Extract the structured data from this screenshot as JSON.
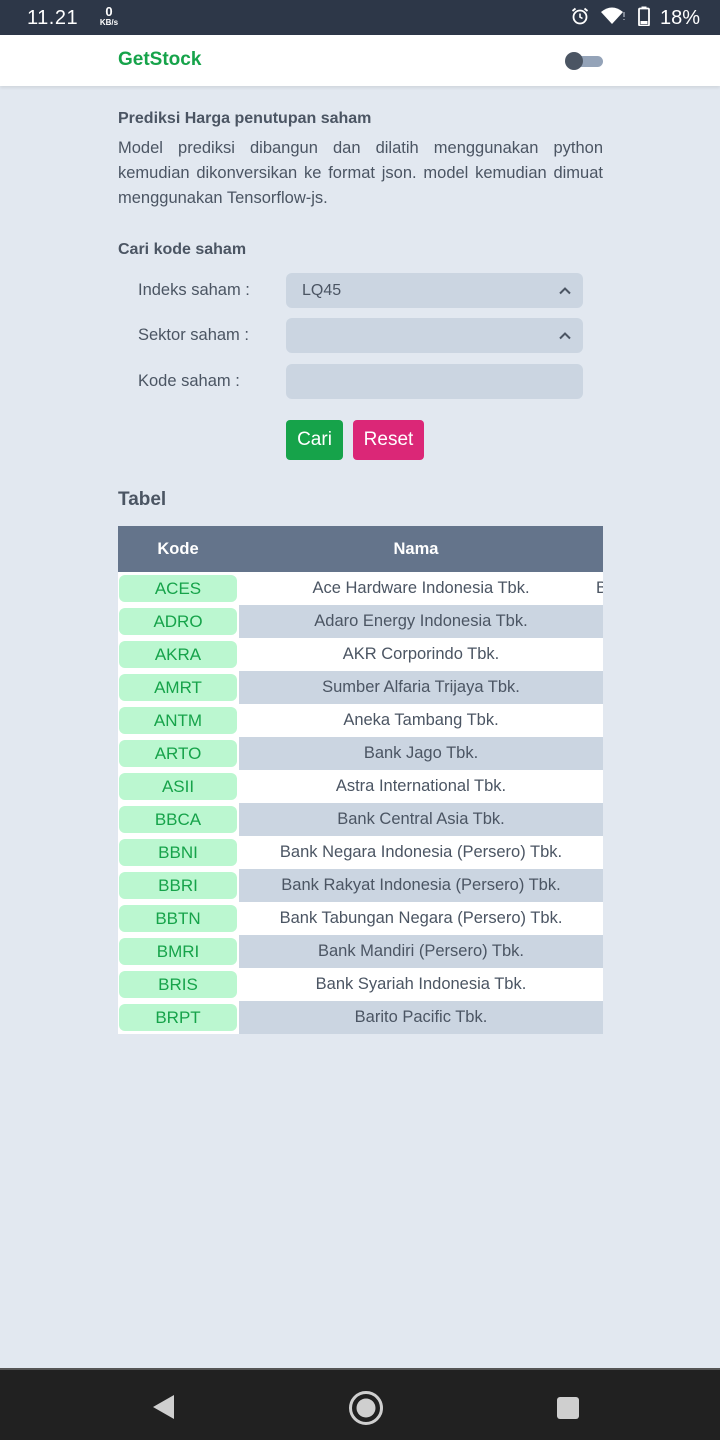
{
  "status_bar": {
    "time": "11.21",
    "net_speed_value": "0",
    "net_speed_unit": "KB/s",
    "battery": "18%",
    "icons": [
      "alarm-icon",
      "wifi-icon",
      "battery-icon"
    ]
  },
  "header": {
    "brand": "GetStock",
    "theme_toggle": "dark-mode-toggle"
  },
  "intro": {
    "title": "Prediksi Harga penutupan saham",
    "description": "Model prediksi dibangun dan dilatih menggunakan python kemudian dikonversikan ke format json. model kemudian dimuat menggunakan Tensorflow-js."
  },
  "search": {
    "title": "Cari kode saham",
    "index_label": "Indeks saham :",
    "index_value": "LQ45",
    "sector_label": "Sektor saham :",
    "sector_value": "",
    "code_label": "Kode saham :",
    "code_value": "",
    "search_button": "Cari",
    "reset_button": "Reset"
  },
  "table": {
    "title": "Tabel",
    "headers": {
      "kode": "Kode",
      "nama": "Nama"
    },
    "overflow_text": "B",
    "rows": [
      {
        "kode": "ACES",
        "nama": "Ace Hardware Indonesia Tbk."
      },
      {
        "kode": "ADRO",
        "nama": "Adaro Energy Indonesia Tbk."
      },
      {
        "kode": "AKRA",
        "nama": "AKR Corporindo Tbk."
      },
      {
        "kode": "AMRT",
        "nama": "Sumber Alfaria Trijaya Tbk."
      },
      {
        "kode": "ANTM",
        "nama": "Aneka Tambang Tbk."
      },
      {
        "kode": "ARTO",
        "nama": "Bank Jago Tbk."
      },
      {
        "kode": "ASII",
        "nama": "Astra International Tbk."
      },
      {
        "kode": "BBCA",
        "nama": "Bank Central Asia Tbk."
      },
      {
        "kode": "BBNI",
        "nama": "Bank Negara Indonesia (Persero) Tbk."
      },
      {
        "kode": "BBRI",
        "nama": "Bank Rakyat Indonesia (Persero) Tbk."
      },
      {
        "kode": "BBTN",
        "nama": "Bank Tabungan Negara (Persero) Tbk."
      },
      {
        "kode": "BMRI",
        "nama": "Bank Mandiri (Persero) Tbk."
      },
      {
        "kode": "BRIS",
        "nama": "Bank Syariah Indonesia Tbk."
      },
      {
        "kode": "BRPT",
        "nama": "Barito Pacific Tbk."
      }
    ]
  },
  "colors": {
    "brand_green": "#16a34a",
    "reset_pink": "#db2777",
    "badge_bg": "#bbf7d0",
    "table_header": "#64748b",
    "page_bg": "#e2e8f0"
  }
}
